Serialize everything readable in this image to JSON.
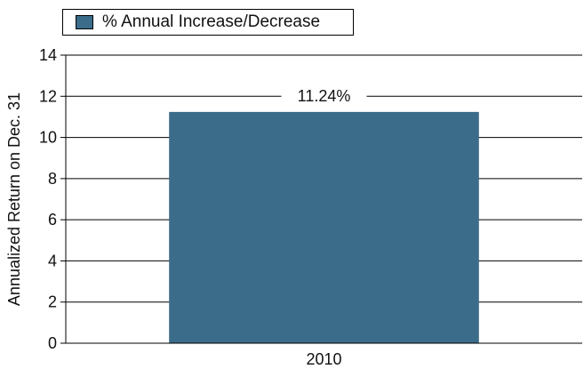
{
  "chart_data": {
    "type": "bar",
    "categories": [
      "2010"
    ],
    "series": [
      {
        "name": "% Annual Increase/Decrease",
        "values": [
          11.24
        ]
      }
    ],
    "data_labels": [
      "11.24%"
    ],
    "title": "",
    "xlabel": "",
    "ylabel": "Annualized Return on Dec. 31",
    "ylim": [
      0,
      14
    ],
    "yticks": [
      0,
      2,
      4,
      6,
      8,
      10,
      12,
      14
    ],
    "grid": true,
    "legend_position": "top-left",
    "colors": {
      "bar": "#3B6C8A",
      "grid": "#000000",
      "axis": "#000000"
    }
  }
}
